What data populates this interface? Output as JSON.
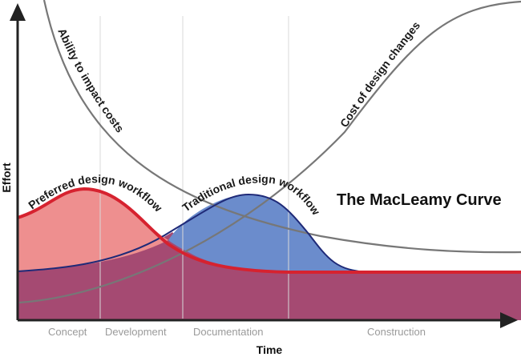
{
  "title": "The MacLeamy Curve",
  "axes": {
    "x_label": "Time",
    "y_label": "Effort"
  },
  "phases": [
    "Concept",
    "Development",
    "Documentation",
    "Construction"
  ],
  "curves": {
    "ability": "Ability to impact costs",
    "cost": "Cost of design changes",
    "preferred": "Preferred design workflow",
    "traditional": "Traditional design workflow"
  },
  "colors": {
    "preferred_fill": "#ee8f8f",
    "preferred_line": "#d6222f",
    "traditional_fill": "#6b8ccc",
    "traditional_line": "#1f2a78",
    "overlap_fill": "#a54a72",
    "gray_curve": "#777777",
    "axis": "#222222"
  }
}
